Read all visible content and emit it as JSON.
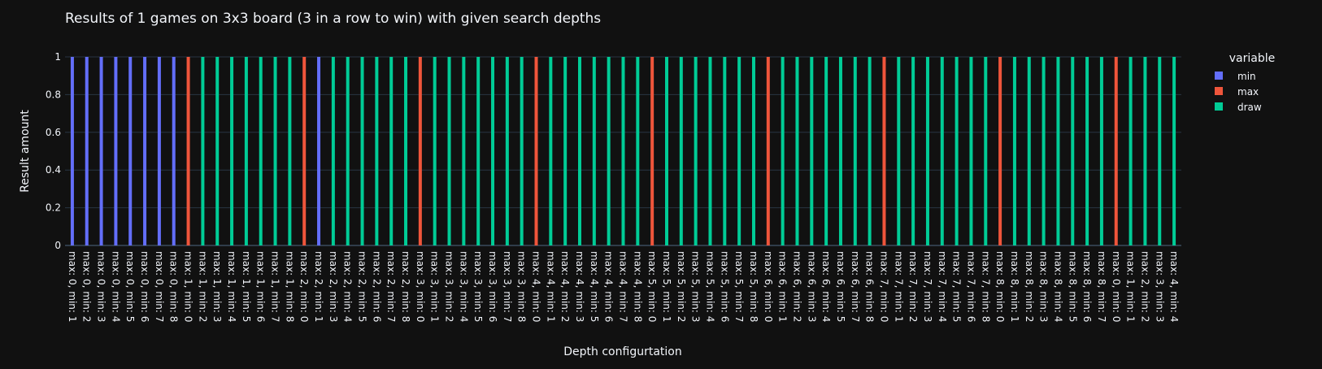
{
  "chart_data": {
    "type": "bar",
    "title": "Results of 1 games on 3x3 board (3 in a row to win) with given search depths",
    "xlabel": "Depth configurtation",
    "ylabel": "Result amount",
    "ylim": [
      0,
      1
    ],
    "yticks": [
      "0",
      "0.2",
      "0.4",
      "0.6",
      "0.8",
      "1"
    ],
    "grid": true,
    "legend": {
      "title": "variable",
      "position": "right"
    },
    "categories": [
      "max: 0, min: 1",
      "max: 0, min: 2",
      "max: 0, min: 3",
      "max: 0, min: 4",
      "max: 0, min: 5",
      "max: 0, min: 6",
      "max: 0, min: 7",
      "max: 0, min: 8",
      "max: 1, min: 0",
      "max: 1, min: 2",
      "max: 1, min: 3",
      "max: 1, min: 4",
      "max: 1, min: 5",
      "max: 1, min: 6",
      "max: 1, min: 7",
      "max: 1, min: 8",
      "max: 2, min: 0",
      "max: 2, min: 1",
      "max: 2, min: 3",
      "max: 2, min: 4",
      "max: 2, min: 5",
      "max: 2, min: 6",
      "max: 2, min: 7",
      "max: 2, min: 8",
      "max: 3, min: 0",
      "max: 3, min: 1",
      "max: 3, min: 2",
      "max: 3, min: 4",
      "max: 3, min: 5",
      "max: 3, min: 6",
      "max: 3, min: 7",
      "max: 3, min: 8",
      "max: 4, min: 0",
      "max: 4, min: 1",
      "max: 4, min: 2",
      "max: 4, min: 3",
      "max: 4, min: 5",
      "max: 4, min: 6",
      "max: 4, min: 7",
      "max: 4, min: 8",
      "max: 5, min: 0",
      "max: 5, min: 1",
      "max: 5, min: 2",
      "max: 5, min: 3",
      "max: 5, min: 4",
      "max: 5, min: 6",
      "max: 5, min: 7",
      "max: 5, min: 8",
      "max: 6, min: 0",
      "max: 6, min: 1",
      "max: 6, min: 2",
      "max: 6, min: 3",
      "max: 6, min: 4",
      "max: 6, min: 5",
      "max: 6, min: 7",
      "max: 6, min: 8",
      "max: 7, min: 0",
      "max: 7, min: 1",
      "max: 7, min: 2",
      "max: 7, min: 3",
      "max: 7, min: 4",
      "max: 7, min: 5",
      "max: 7, min: 6",
      "max: 7, min: 8",
      "max: 8, min: 0",
      "max: 8, min: 1",
      "max: 8, min: 2",
      "max: 8, min: 3",
      "max: 8, min: 4",
      "max: 8, min: 5",
      "max: 8, min: 6",
      "max: 8, min: 7",
      "max: 0, min: 0",
      "max: 1, min: 1",
      "max: 2, min: 2",
      "max: 3, min: 3",
      "max: 4, min: 4"
    ],
    "series": [
      {
        "name": "min",
        "color": "#636efa",
        "values": [
          1,
          1,
          1,
          1,
          1,
          1,
          1,
          1,
          0,
          0,
          0,
          0,
          0,
          0,
          0,
          0,
          0,
          1,
          0,
          0,
          0,
          0,
          0,
          0,
          0,
          0,
          0,
          0,
          0,
          0,
          0,
          0,
          0,
          0,
          0,
          0,
          0,
          0,
          0,
          0,
          0,
          0,
          0,
          0,
          0,
          0,
          0,
          0,
          0,
          0,
          0,
          0,
          0,
          0,
          0,
          0,
          0,
          0,
          0,
          0,
          0,
          0,
          0,
          0,
          0,
          0,
          0,
          0,
          0,
          0,
          0,
          0,
          0,
          0,
          0,
          0,
          0
        ]
      },
      {
        "name": "max",
        "color": "#ef553b",
        "values": [
          0,
          0,
          0,
          0,
          0,
          0,
          0,
          0,
          1,
          0,
          0,
          0,
          0,
          0,
          0,
          0,
          1,
          0,
          0,
          0,
          0,
          0,
          0,
          0,
          1,
          0,
          0,
          0,
          0,
          0,
          0,
          0,
          1,
          0,
          0,
          0,
          0,
          0,
          0,
          0,
          1,
          0,
          0,
          0,
          0,
          0,
          0,
          0,
          1,
          0,
          0,
          0,
          0,
          0,
          0,
          0,
          1,
          0,
          0,
          0,
          0,
          0,
          0,
          0,
          1,
          0,
          0,
          0,
          0,
          0,
          0,
          0,
          1,
          0,
          0,
          0,
          0
        ]
      },
      {
        "name": "draw",
        "color": "#00cc96",
        "values": [
          0,
          0,
          0,
          0,
          0,
          0,
          0,
          0,
          0,
          1,
          1,
          1,
          1,
          1,
          1,
          1,
          0,
          0,
          1,
          1,
          1,
          1,
          1,
          1,
          0,
          1,
          1,
          1,
          1,
          1,
          1,
          1,
          0,
          1,
          1,
          1,
          1,
          1,
          1,
          1,
          0,
          1,
          1,
          1,
          1,
          1,
          1,
          1,
          0,
          1,
          1,
          1,
          1,
          1,
          1,
          1,
          0,
          1,
          1,
          1,
          1,
          1,
          1,
          1,
          0,
          1,
          1,
          1,
          1,
          1,
          1,
          1,
          0,
          1,
          1,
          1,
          1
        ]
      }
    ]
  },
  "colors": {
    "background": "#111111",
    "grid": "#283442",
    "text": "#f2f5fa"
  }
}
